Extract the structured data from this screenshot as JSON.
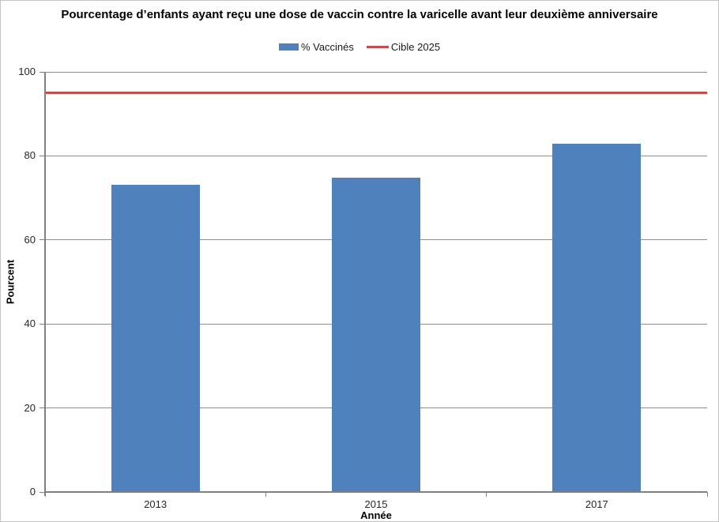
{
  "chart_data": {
    "type": "bar",
    "title": "Pourcentage d’enfants ayant reçu une dose de vaccin contre la varicelle avant leur deuxième anniversaire",
    "categories": [
      "2013",
      "2015",
      "2017"
    ],
    "series": [
      {
        "name": "% Vaccinés",
        "values": [
          73.1,
          74.8,
          82.9
        ],
        "color": "#4F81BD"
      }
    ],
    "target_line": {
      "name": "Cible 2025",
      "value": 95,
      "color": "#C0504D",
      "thickness_px": 3
    },
    "xlabel": "Année",
    "ylabel": "Pourcent",
    "ylim": [
      0,
      100
    ],
    "ytick_step": 20,
    "yticks": [
      0,
      20,
      40,
      60,
      80,
      100
    ],
    "grid": true,
    "legend_position": "top-center",
    "colors": {
      "bar": "#4F81BD",
      "target": "#C0504D",
      "gridline": "#8E8E8E",
      "axis": "#808080",
      "tick_label": "#262626",
      "chart_border": "#C3C3C3",
      "background": "#FFFFFF"
    }
  }
}
